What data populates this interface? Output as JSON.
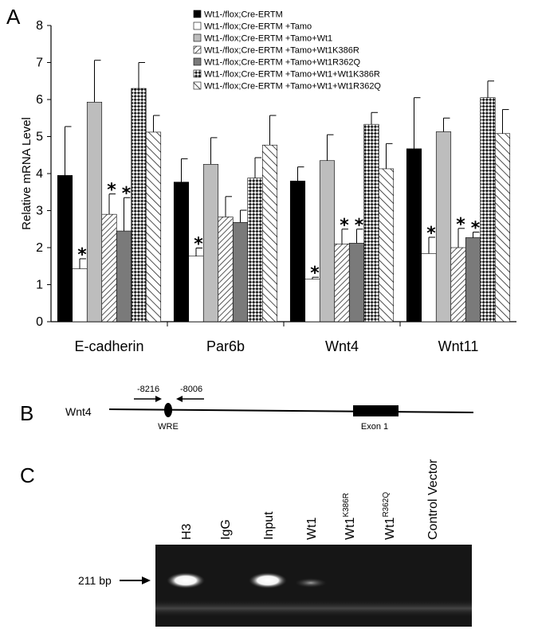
{
  "panels": {
    "a": "A",
    "b": "B",
    "c": "C"
  },
  "chart_data": {
    "type": "bar",
    "ylabel": "Relative mRNA Level",
    "ylim": [
      0,
      8
    ],
    "yticks": [
      "0",
      "1",
      "2",
      "3",
      "4",
      "5",
      "6",
      "7",
      "8"
    ],
    "categories": [
      "E-cadherin",
      "Par6b",
      "Wnt4",
      "Wnt11"
    ],
    "legend_position": "top-right",
    "series": [
      {
        "name": "Wt1-/flox;Cre-ERTM",
        "pattern": "solid-black",
        "values": [
          3.95,
          3.77,
          3.8,
          4.67
        ],
        "errors": [
          1.32,
          0.63,
          0.38,
          1.38
        ],
        "sig": [
          false,
          false,
          false,
          false
        ]
      },
      {
        "name": "Wt1-/flox;Cre-ERTM +Tamo",
        "pattern": "white",
        "values": [
          1.43,
          1.77,
          1.15,
          1.84
        ],
        "errors": [
          0.27,
          0.22,
          0.05,
          0.44
        ],
        "sig": [
          true,
          true,
          true,
          true
        ]
      },
      {
        "name": "Wt1-/flox;Cre-ERTM +Tamo+Wt1",
        "pattern": "light-grey",
        "values": [
          5.93,
          4.25,
          4.35,
          5.13
        ],
        "errors": [
          1.13,
          0.72,
          0.7,
          0.37
        ],
        "sig": [
          false,
          false,
          false,
          false
        ]
      },
      {
        "name": "Wt1-/flox;Cre-ERTM +Tamo+Wt1K386R",
        "pattern": "diag-fine",
        "values": [
          2.9,
          2.83,
          2.1,
          2.0
        ],
        "errors": [
          0.55,
          0.55,
          0.4,
          0.52
        ],
        "sig": [
          true,
          false,
          true,
          true
        ]
      },
      {
        "name": "Wt1-/flox;Cre-ERTM +Tamo+Wt1R362Q",
        "pattern": "dark-grey",
        "values": [
          2.45,
          2.68,
          2.12,
          2.27
        ],
        "errors": [
          0.9,
          0.33,
          0.38,
          0.15
        ],
        "sig": [
          true,
          false,
          true,
          true
        ]
      },
      {
        "name": "Wt1-/flox;Cre-ERTM +Tamo+Wt1+Wt1K386R",
        "pattern": "checker",
        "values": [
          6.3,
          3.88,
          5.33,
          6.05
        ],
        "errors": [
          0.7,
          0.55,
          0.32,
          0.45
        ],
        "sig": [
          false,
          false,
          false,
          false
        ]
      },
      {
        "name": "Wt1-/flox;Cre-ERTM +Tamo+Wt1+Wt1R362Q",
        "pattern": "diag-wide",
        "values": [
          5.12,
          4.77,
          4.13,
          5.08
        ],
        "errors": [
          0.45,
          0.8,
          0.68,
          0.65
        ],
        "sig": [
          false,
          false,
          false,
          false
        ]
      }
    ],
    "sig_marker": "*"
  },
  "diagram": {
    "gene": "Wnt4",
    "primer_forward": "-8216",
    "primer_reverse": "-8006",
    "wre_label": "WRE",
    "exon_label": "Exon 1"
  },
  "gel": {
    "size_label": "211 bp",
    "lanes": [
      {
        "label": "H3",
        "sup": "",
        "band": "strong"
      },
      {
        "label": "IgG",
        "sup": "",
        "band": "none"
      },
      {
        "label": "Input",
        "sup": "",
        "band": "strong"
      },
      {
        "label": "Wt1",
        "sup": "",
        "band": "weak"
      },
      {
        "label": "Wt1",
        "sup": "K386R",
        "band": "none"
      },
      {
        "label": "Wt1",
        "sup": "R362Q",
        "band": "none"
      },
      {
        "label": "Control Vector",
        "sup": "",
        "band": "none"
      }
    ]
  }
}
